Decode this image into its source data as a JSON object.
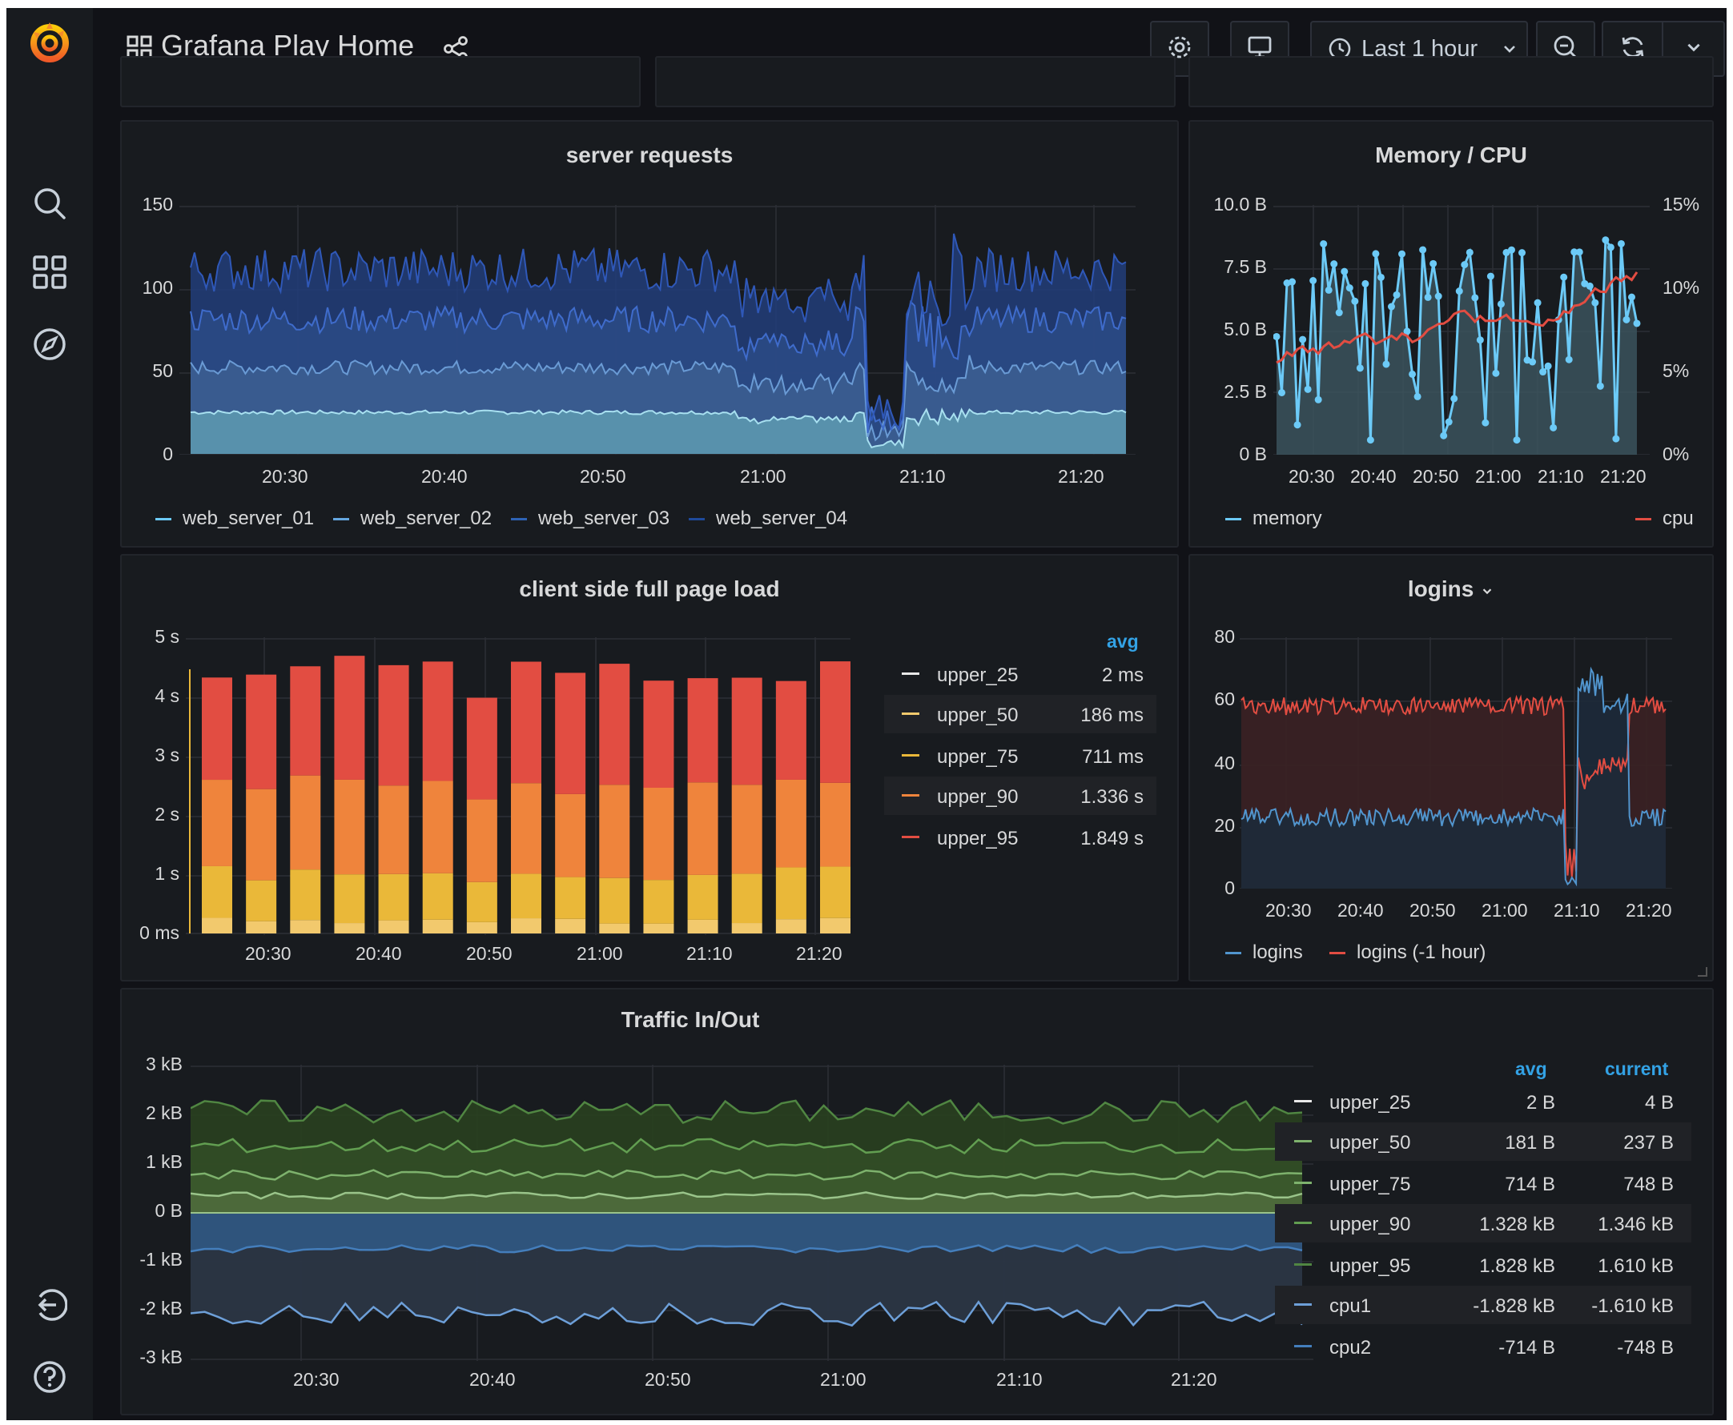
{
  "header": {
    "title": "Grafana Play Home",
    "time_range": "Last 1 hour"
  },
  "icons": {
    "logo": "grafana-logo",
    "search": "search-icon",
    "dashboards": "dashboards-icon",
    "explore": "compass-icon",
    "signout": "sign-out-icon",
    "help": "help-icon",
    "share": "share-icon",
    "settings": "gear-icon",
    "tv": "monitor-icon",
    "clock": "clock-icon",
    "zoom_out": "zoom-out-icon",
    "refresh": "refresh-icon",
    "caret": "chevron-down-icon"
  },
  "colors": {
    "background": "#111217",
    "panel": "#181b1f",
    "accent_blue": "#6ccaf7",
    "accent_red": "#e24d42",
    "avg_header": "#33a2e5"
  },
  "server_requests": {
    "title": "server requests",
    "y_ticks": [
      "150",
      "100",
      "50",
      "0"
    ],
    "x_ticks": [
      "20:30",
      "20:40",
      "20:50",
      "21:00",
      "21:10",
      "21:20"
    ],
    "legend": [
      "web_server_01",
      "web_server_02",
      "web_server_03",
      "web_server_04"
    ]
  },
  "memory_cpu": {
    "title": "Memory / CPU",
    "y_left": [
      "10.0 B",
      "7.5 B",
      "5.0 B",
      "2.5 B",
      "0 B"
    ],
    "y_right": [
      "15%",
      "10%",
      "5%",
      "0%"
    ],
    "x_ticks": [
      "20:30",
      "20:40",
      "20:50",
      "21:00",
      "21:10",
      "21:20"
    ],
    "legend_left": "memory",
    "legend_right": "cpu"
  },
  "page_load": {
    "title": "client side full page load",
    "y_ticks": [
      "5 s",
      "4 s",
      "3 s",
      "2 s",
      "1 s",
      "0 ms"
    ],
    "x_ticks": [
      "20:30",
      "20:40",
      "20:50",
      "21:00",
      "21:10",
      "21:20"
    ],
    "legend_header": "avg",
    "legend": [
      {
        "name": "upper_25",
        "avg": "2 ms",
        "color": "#e8e8e8"
      },
      {
        "name": "upper_50",
        "avg": "186 ms",
        "color": "#f2c96d"
      },
      {
        "name": "upper_75",
        "avg": "711 ms",
        "color": "#eab839"
      },
      {
        "name": "upper_90",
        "avg": "1.336 s",
        "color": "#ef843c"
      },
      {
        "name": "upper_95",
        "avg": "1.849 s",
        "color": "#e24d42"
      }
    ]
  },
  "logins": {
    "title": "logins",
    "y_ticks": [
      "80",
      "60",
      "40",
      "20",
      "0"
    ],
    "x_ticks": [
      "20:30",
      "20:40",
      "20:50",
      "21:00",
      "21:10",
      "21:20"
    ],
    "legend": [
      "logins",
      "logins (-1 hour)"
    ]
  },
  "traffic": {
    "title": "Traffic In/Out",
    "y_ticks": [
      "3 kB",
      "2 kB",
      "1 kB",
      "0 B",
      "-1 kB",
      "-2 kB",
      "-3 kB"
    ],
    "x_ticks": [
      "20:30",
      "20:40",
      "20:50",
      "21:00",
      "21:10",
      "21:20"
    ],
    "legend_headers": [
      "avg",
      "current"
    ],
    "legend": [
      {
        "name": "upper_25",
        "avg": "2 B",
        "current": "4 B",
        "color": "#e8e8e8"
      },
      {
        "name": "upper_50",
        "avg": "181 B",
        "current": "237 B",
        "color": "#7eb26d"
      },
      {
        "name": "upper_75",
        "avg": "714 B",
        "current": "748 B",
        "color": "#7eb26d"
      },
      {
        "name": "upper_90",
        "avg": "1.328 kB",
        "current": "1.346 kB",
        "color": "#629e51"
      },
      {
        "name": "upper_95",
        "avg": "1.828 kB",
        "current": "1.610 kB",
        "color": "#508642"
      },
      {
        "name": "cpu1",
        "avg": "-1.828 kB",
        "current": "-1.610 kB",
        "color": "#6d9fd8"
      },
      {
        "name": "cpu2",
        "avg": "-714 B",
        "current": "-748 B",
        "color": "#447ebc"
      }
    ]
  }
}
